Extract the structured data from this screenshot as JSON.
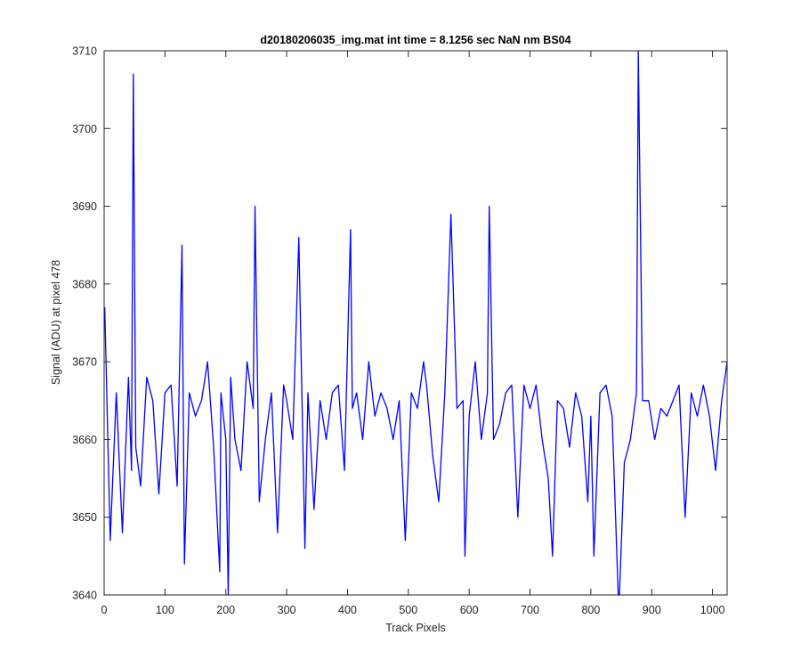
{
  "chart_data": {
    "type": "line",
    "title": "d20180206035_img.mat int time = 8.1256 sec  NaN nm BS04",
    "xlabel": "Track Pixels",
    "ylabel": "Signal (ADU) at pixel 478",
    "xlim": [
      0,
      1024
    ],
    "ylim": [
      3640,
      3710
    ],
    "xticks": [
      "0",
      "100",
      "200",
      "300",
      "400",
      "500",
      "600",
      "700",
      "800",
      "900",
      "1000"
    ],
    "yticks": [
      "3640",
      "3650",
      "3660",
      "3670",
      "3680",
      "3690",
      "3700",
      "3710"
    ],
    "grid": false,
    "series": [
      {
        "color": "#0000ff",
        "x": [
          1,
          10,
          20,
          30,
          40,
          45,
          48,
          52,
          60,
          70,
          80,
          90,
          100,
          110,
          120,
          128,
          132,
          140,
          150,
          160,
          170,
          180,
          190,
          192,
          200,
          204,
          208,
          215,
          225,
          235,
          245,
          248,
          255,
          265,
          275,
          285,
          295,
          300,
          310,
          320,
          330,
          335,
          345,
          355,
          365,
          375,
          385,
          395,
          405,
          408,
          415,
          425,
          435,
          445,
          455,
          465,
          475,
          485,
          495,
          505,
          515,
          525,
          530,
          540,
          550,
          560,
          570,
          580,
          590,
          593,
          600,
          610,
          620,
          630,
          633,
          640,
          650,
          660,
          670,
          680,
          690,
          700,
          710,
          720,
          730,
          737,
          745,
          755,
          765,
          775,
          785,
          795,
          800,
          805,
          815,
          825,
          835,
          845,
          847,
          855,
          865,
          875,
          878,
          885,
          895,
          905,
          915,
          925,
          935,
          945,
          955,
          965,
          975,
          985,
          995,
          1005,
          1015,
          1024
        ],
        "values": [
          3677,
          3647,
          3666,
          3648,
          3668,
          3656,
          3707,
          3659,
          3654,
          3668,
          3665,
          3653,
          3666,
          3667,
          3654,
          3685,
          3644,
          3666,
          3663,
          3665,
          3670,
          3659,
          3643,
          3666,
          3660,
          3640,
          3668,
          3660,
          3656,
          3670,
          3664,
          3690,
          3652,
          3660,
          3666,
          3648,
          3667,
          3665,
          3660,
          3686,
          3646,
          3666,
          3651,
          3665,
          3660,
          3666,
          3667,
          3656,
          3687,
          3664,
          3666,
          3660,
          3670,
          3663,
          3666,
          3664,
          3660,
          3665,
          3647,
          3666,
          3664,
          3670,
          3667,
          3658,
          3652,
          3666,
          3689,
          3664,
          3665,
          3645,
          3663,
          3670,
          3660,
          3666,
          3690,
          3660,
          3662,
          3666,
          3667,
          3650,
          3667,
          3664,
          3667,
          3660,
          3655,
          3645,
          3665,
          3664,
          3659,
          3666,
          3663,
          3652,
          3663,
          3645,
          3666,
          3667,
          3663,
          3640,
          3640,
          3657,
          3660,
          3666,
          3710,
          3665,
          3665,
          3660,
          3664,
          3663,
          3665,
          3667,
          3650,
          3666,
          3663,
          3667,
          3663,
          3656,
          3665,
          3670
        ]
      }
    ]
  }
}
